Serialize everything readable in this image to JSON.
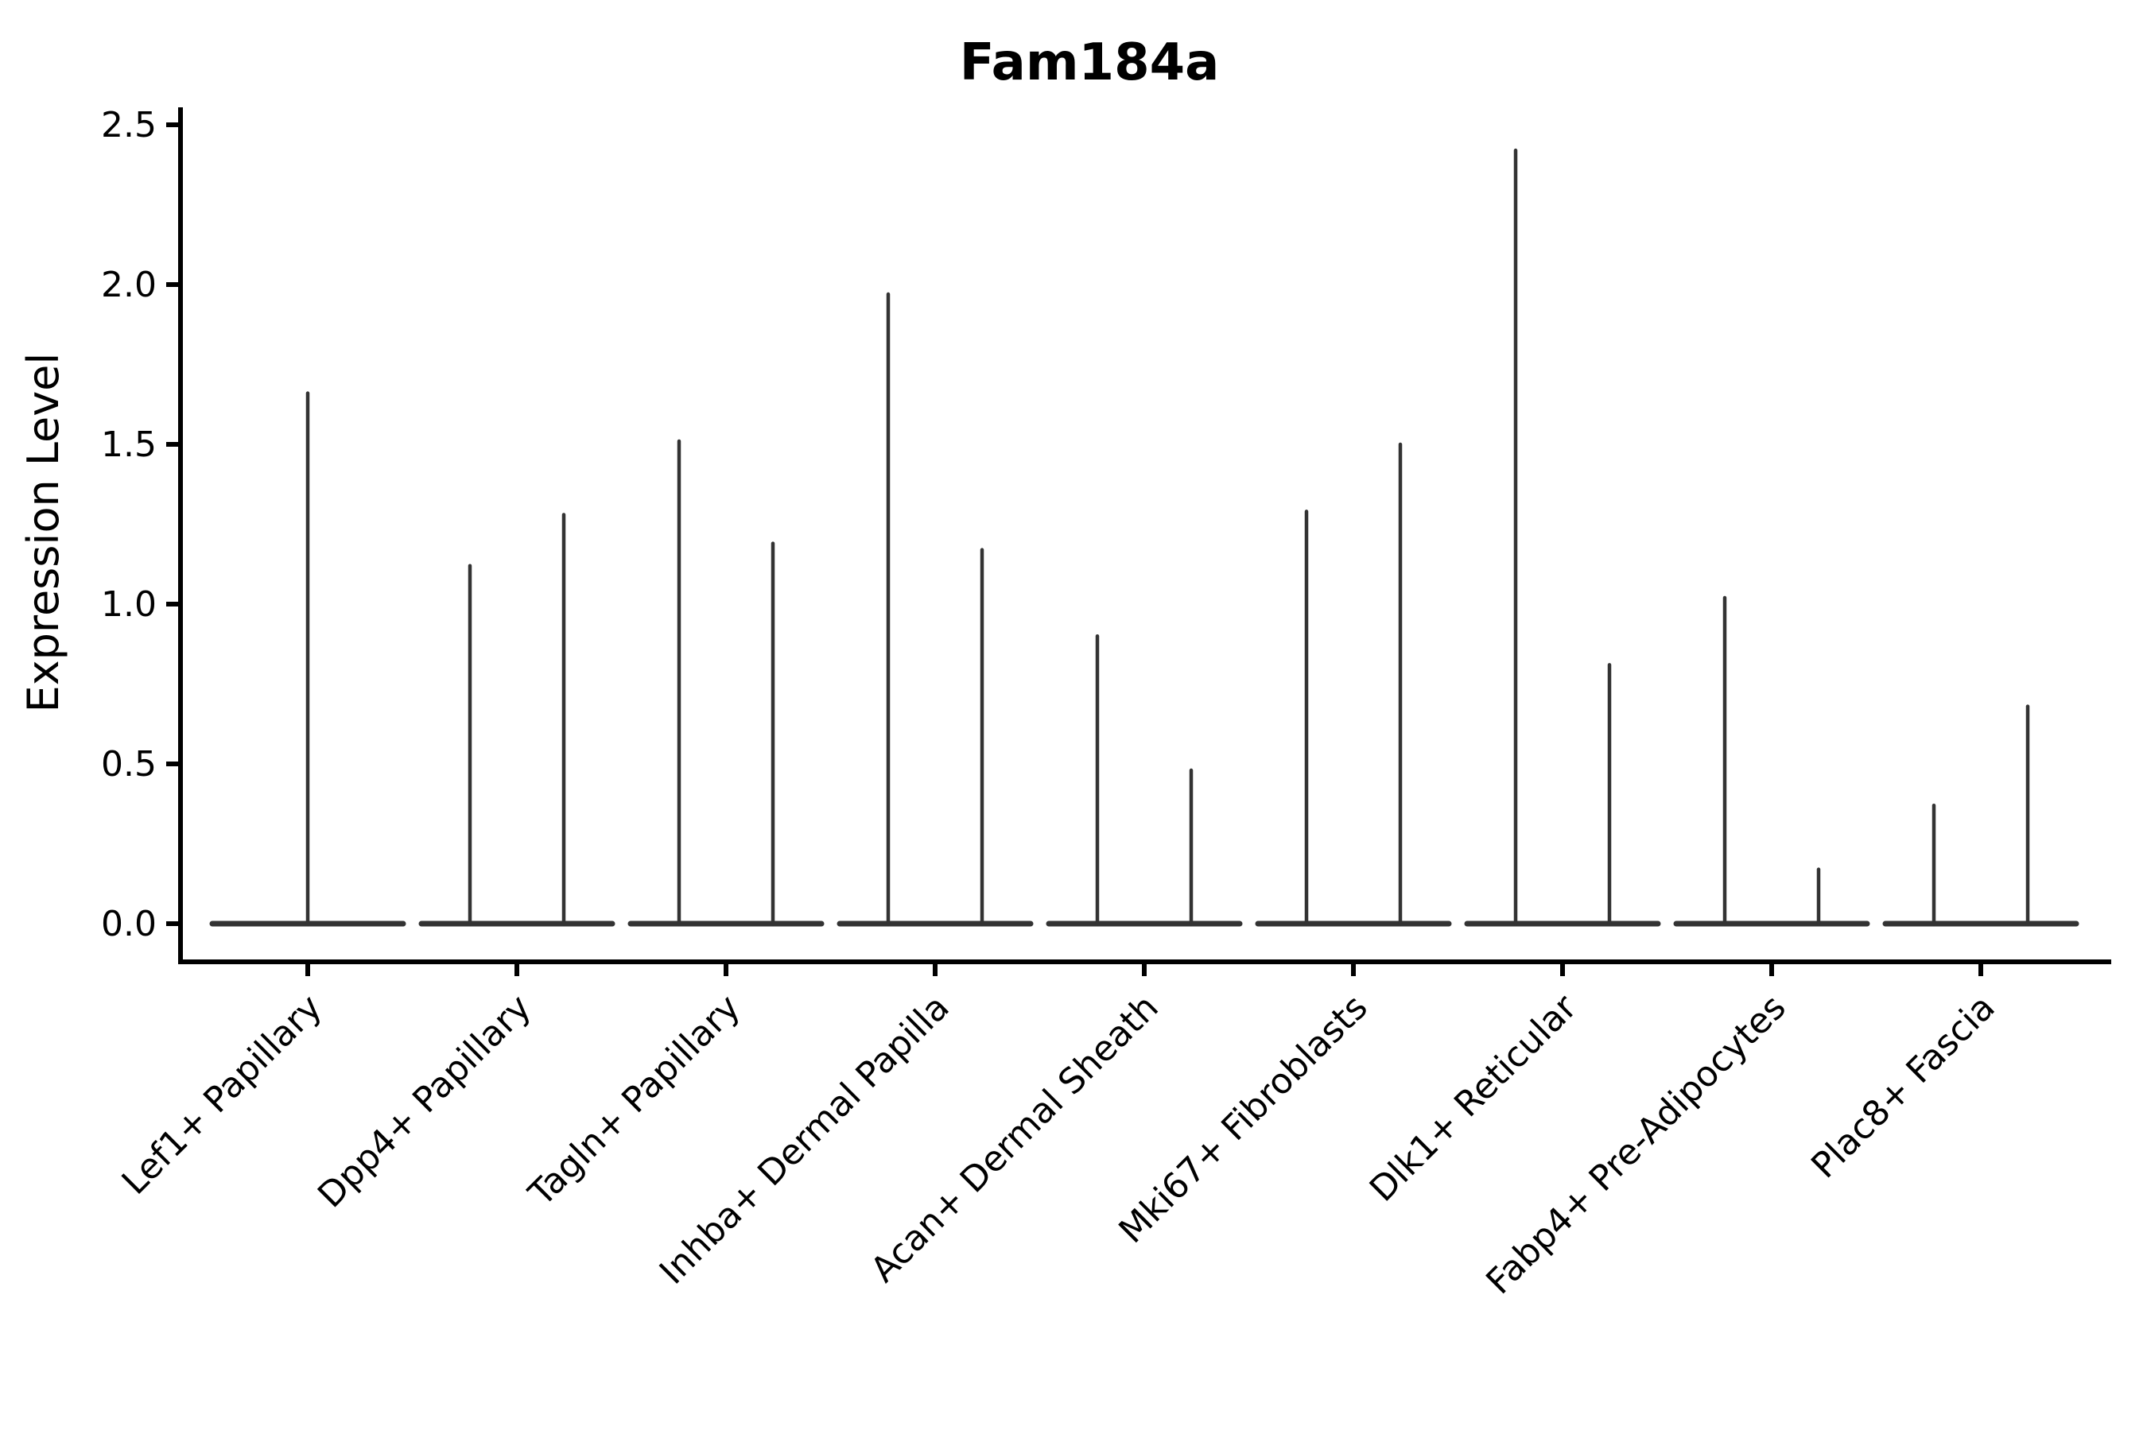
{
  "chart_data": {
    "type": "violin",
    "title": "Fam184a",
    "xlabel": "",
    "ylabel": "Expression Level",
    "ylim": [
      0,
      2.5
    ],
    "y_ticks": [
      0.0,
      0.5,
      1.0,
      1.5,
      2.0,
      2.5
    ],
    "y_tick_labels": [
      "0.0",
      "0.5",
      "1.0",
      "1.5",
      "2.0",
      "2.5"
    ],
    "categories": [
      "Lef1+ Papillary",
      "Dpp4+ Papillary",
      "Tagln+ Papillary",
      "Inhba+ Dermal Papilla",
      "Acan+ Dermal Sheath",
      "Mki67+ Fibroblasts",
      "Dlk1+ Reticular",
      "Fabp4+ Pre-Adipocytes",
      "Plac8+ Fascia"
    ],
    "violin_peak_expression": [
      [
        1.66
      ],
      [
        1.12,
        1.28
      ],
      [
        1.51,
        1.19
      ],
      [
        1.97,
        1.17
      ],
      [
        0.9,
        0.48
      ],
      [
        1.29,
        1.5
      ],
      [
        2.42,
        0.81
      ],
      [
        1.02,
        0.17
      ],
      [
        0.37,
        0.68
      ]
    ],
    "baseline_value": 0.0,
    "grid": false,
    "legend_position": "none",
    "colors": {
      "violin": "#333333",
      "axis": "#000000",
      "text": "#000000",
      "background": "#ffffff"
    }
  }
}
